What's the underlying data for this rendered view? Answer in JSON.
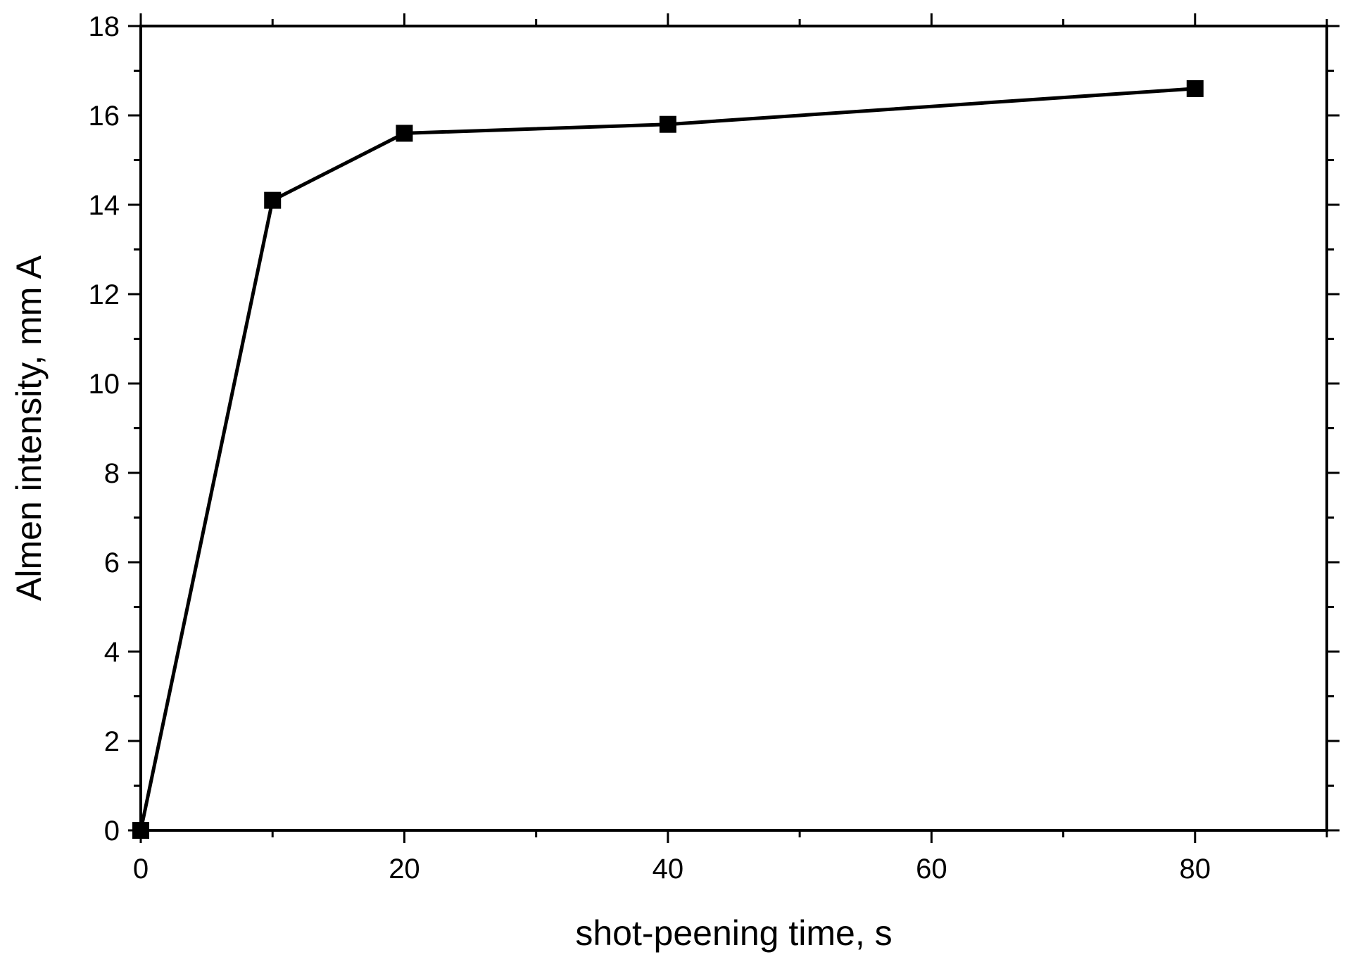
{
  "chart_data": {
    "type": "line",
    "title": "",
    "xlabel": "shot-peening time, s",
    "ylabel": "Almen intensity, mm A",
    "xlim": [
      0,
      90
    ],
    "ylim": [
      0,
      18
    ],
    "x_ticks": [
      0,
      20,
      40,
      60,
      80
    ],
    "x_minor_ticks": [
      10,
      30,
      50,
      70,
      90
    ],
    "y_ticks": [
      0,
      2,
      4,
      6,
      8,
      10,
      12,
      14,
      16,
      18
    ],
    "y_minor_ticks": [
      1,
      3,
      5,
      7,
      9,
      11,
      13,
      15,
      17
    ],
    "grid": false,
    "legend": "none",
    "series": [
      {
        "x": [
          0,
          10,
          20,
          40,
          80
        ],
        "y": [
          0,
          14.1,
          15.6,
          15.8,
          16.6
        ],
        "marker": "square",
        "color": "#000000"
      }
    ]
  }
}
